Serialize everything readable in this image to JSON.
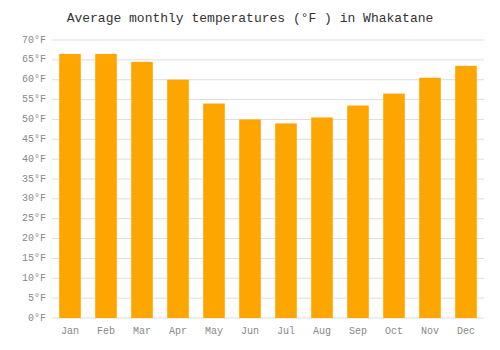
{
  "chart_data": {
    "type": "bar",
    "title": "Average monthly temperatures (°F ) in Whakatane",
    "categories": [
      "Jan",
      "Feb",
      "Mar",
      "Apr",
      "May",
      "Jun",
      "Jul",
      "Aug",
      "Sep",
      "Oct",
      "Nov",
      "Dec"
    ],
    "values": [
      66.5,
      66.5,
      64.5,
      60.0,
      54.0,
      50.0,
      49.0,
      50.5,
      53.5,
      56.5,
      60.5,
      63.5
    ],
    "color": "#FFA500",
    "ylim": [
      0,
      70
    ],
    "yticks": [
      {
        "value": 0,
        "label": "0°F"
      },
      {
        "value": 5,
        "label": "5°F"
      },
      {
        "value": 10,
        "label": "10°F"
      },
      {
        "value": 15,
        "label": "15°F"
      },
      {
        "value": 20,
        "label": "20°F"
      },
      {
        "value": 25,
        "label": "25°F"
      },
      {
        "value": 30,
        "label": "30°F"
      },
      {
        "value": 35,
        "label": "35°F"
      },
      {
        "value": 40,
        "label": "40°F"
      },
      {
        "value": 45,
        "label": "45°F"
      },
      {
        "value": 50,
        "label": "50°F"
      },
      {
        "value": 55,
        "label": "55°F"
      },
      {
        "value": 60,
        "label": "60°F"
      },
      {
        "value": 65,
        "label": "65°F"
      },
      {
        "value": 70,
        "label": "70°F"
      }
    ],
    "grid": true
  }
}
